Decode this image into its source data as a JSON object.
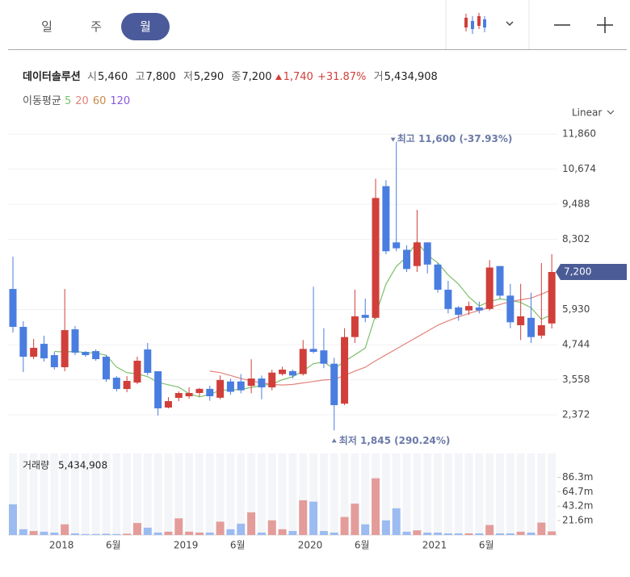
{
  "tabs": [
    "일",
    "주",
    "월"
  ],
  "active_tab": 2,
  "header": {
    "name": "데이터솔루션",
    "quotes": [
      {
        "label": "시",
        "value": "5,460"
      },
      {
        "label": "고",
        "value": "7,800"
      },
      {
        "label": "저",
        "value": "5,290"
      },
      {
        "label": "종",
        "value": "7,200"
      }
    ],
    "change": "1,740",
    "change_pct": "+31.87%",
    "volume_label": "거",
    "volume": "5,434,908"
  },
  "ma_title": "이동평균",
  "chart_data": {
    "type": "candlestick",
    "scale_label": "Linear",
    "categories": [
      null,
      null,
      null,
      null,
      null,
      "2018",
      null,
      null,
      null,
      null,
      "6월",
      null,
      null,
      null,
      null,
      null,
      null,
      "2019",
      null,
      null,
      null,
      null,
      "6월",
      null,
      null,
      null,
      null,
      null,
      null,
      "2020",
      null,
      null,
      null,
      null,
      "6월",
      null,
      null,
      null,
      null,
      null,
      null,
      "2021",
      null,
      null,
      null,
      null,
      "6월",
      null,
      null,
      null,
      null,
      null,
      null
    ],
    "open": [
      6626,
      5345,
      4336,
      4772,
      4390,
      3981,
      5262,
      4499,
      4526,
      4336,
      3627,
      3245,
      3463,
      4581,
      3845,
      2618,
      2945,
      3000,
      3110,
      3250,
      2950,
      3500,
      3500,
      3350,
      3600,
      3300,
      3750,
      3850,
      3750,
      4600,
      4550,
      4100,
      2750,
      5000,
      5750,
      5650,
      10100,
      8200,
      7950,
      7400,
      8200,
      7450,
      6600,
      6000,
      5900,
      6000,
      5950,
      7400,
      6400,
      5400,
      5650,
      5050,
      5460
    ],
    "high": [
      7716,
      5535,
      4935,
      5044,
      4499,
      6626,
      5371,
      4526,
      4580,
      4390,
      3681,
      3681,
      4336,
      4799,
      3845,
      2970,
      3163,
      3300,
      3280,
      3360,
      3700,
      3600,
      3750,
      4250,
      3700,
      3900,
      4000,
      3900,
      4900,
      6700,
      5300,
      4300,
      5300,
      6600,
      6300,
      10350,
      10300,
      11600,
      8100,
      9300,
      8200,
      7500,
      6900,
      6050,
      6200,
      6200,
      7600,
      7400,
      6800,
      6800,
      6500,
      7500,
      7800
    ],
    "low": [
      5153,
      3818,
      4254,
      4172,
      3900,
      3845,
      4390,
      4336,
      4200,
      3490,
      3163,
      3136,
      3409,
      3708,
      2346,
      2591,
      2836,
      2920,
      2990,
      2850,
      2900,
      3050,
      3100,
      3100,
      2900,
      3200,
      3700,
      3600,
      3700,
      4450,
      3950,
      1845,
      2700,
      4800,
      5500,
      5600,
      7800,
      7900,
      7200,
      7200,
      7150,
      6500,
      5800,
      5550,
      5750,
      5800,
      5900,
      6300,
      5300,
      4900,
      4800,
      4950,
      5290
    ],
    "close": [
      5345,
      4336,
      4636,
      4282,
      3981,
      5235,
      4472,
      4390,
      4254,
      3572,
      3245,
      3518,
      4200,
      3790,
      2591,
      2836,
      3109,
      3110,
      3250,
      3000,
      3550,
      3150,
      3200,
      3600,
      3300,
      3800,
      3900,
      3700,
      4600,
      4500,
      4100,
      2700,
      5000,
      5700,
      5650,
      9700,
      7900,
      8000,
      7300,
      8200,
      7450,
      6600,
      5950,
      5750,
      6050,
      5900,
      7350,
      6400,
      5500,
      5700,
      5000,
      5400,
      7200
    ],
    "up_color": "#d13f3a",
    "down_color": "#4a7de0",
    "ylim": [
      1400,
      12300
    ],
    "yticks": [
      {
        "value": 2372,
        "label": "2,372"
      },
      {
        "value": 3558,
        "label": "3,558"
      },
      {
        "value": 4744,
        "label": "4,744"
      },
      {
        "value": 5930,
        "label": "5,930"
      },
      {
        "value": 8302,
        "label": "8,302"
      },
      {
        "value": 9488,
        "label": "9,488"
      },
      {
        "value": 10674,
        "label": "10,674"
      },
      {
        "value": 11860,
        "label": "11,860"
      }
    ],
    "grid": true,
    "series": [
      {
        "name": "5",
        "color": "#7cc06a",
        "values": [
          null,
          null,
          null,
          null,
          4516,
          4494,
          4521,
          4472,
          4466,
          4385,
          3987,
          3796,
          3758,
          3665,
          3469,
          3387,
          3305,
          3087,
          2979,
          3061,
          3204,
          3212,
          3230,
          3300,
          3360,
          3410,
          3560,
          3660,
          3860,
          4100,
          4160,
          3920,
          4180,
          4400,
          4630,
          5750,
          6790,
          7390,
          7710,
          8220,
          7770,
          7510,
          7100,
          6790,
          6360,
          6050,
          6200,
          6290,
          6240,
          6170,
          5990,
          5600,
          5760
        ]
      },
      {
        "name": "20",
        "color": "#e3837a",
        "values": [
          null,
          null,
          null,
          null,
          null,
          null,
          null,
          null,
          null,
          null,
          null,
          null,
          null,
          null,
          null,
          null,
          null,
          null,
          null,
          3850,
          3800,
          3700,
          3600,
          3520,
          3450,
          3400,
          3380,
          3400,
          3450,
          3500,
          3550,
          3570,
          3700,
          3850,
          3980,
          4200,
          4400,
          4600,
          4800,
          5000,
          5200,
          5400,
          5550,
          5680,
          5800,
          5900,
          6000,
          6100,
          6200,
          6260,
          6320,
          6450,
          6600
        ]
      },
      {
        "name": "60",
        "color": "#c98a4a",
        "values": [
          null,
          null,
          null,
          null,
          null,
          null,
          null,
          null,
          null,
          null,
          null,
          null,
          null,
          null,
          null,
          null,
          null,
          null,
          null,
          null,
          null,
          null,
          null,
          null,
          null,
          null,
          null,
          null,
          null,
          null,
          null,
          null,
          null,
          null,
          null,
          null,
          null,
          null,
          null,
          null,
          null,
          null,
          null,
          null,
          null,
          null,
          null,
          null,
          null,
          null,
          null,
          null,
          null
        ]
      },
      {
        "name": "120",
        "color": "#8a5ad8",
        "values": [
          null,
          null,
          null,
          null,
          null,
          null,
          null,
          null,
          null,
          null,
          null,
          null,
          null,
          null,
          null,
          null,
          null,
          null,
          null,
          null,
          null,
          null,
          null,
          null,
          null,
          null,
          null,
          null,
          null,
          null,
          null,
          null,
          null,
          null,
          null,
          null,
          null,
          null,
          null,
          null,
          null,
          null,
          null,
          null,
          null,
          null,
          null,
          null,
          null,
          null,
          null,
          null,
          null
        ]
      }
    ],
    "annotations": [
      {
        "text": "최고 11,600 (-37.93%)"
      },
      {
        "text": "최저 1,845 (290.24%)"
      }
    ],
    "volume": {
      "title": "거래량",
      "up_color": "#e39c9a",
      "down_color": "#9cbbf0",
      "values": [
        46000000,
        8700000,
        6000000,
        5000000,
        3700000,
        16000000,
        2500000,
        1500000,
        1500000,
        2000000,
        1500000,
        2000000,
        18000000,
        11000000,
        3700000,
        5000000,
        25000000,
        5000000,
        3700000,
        3700000,
        20000000,
        8700000,
        17000000,
        34000000,
        3700000,
        22000000,
        8700000,
        6000000,
        52000000,
        50000000,
        6000000,
        3700000,
        27000000,
        47000000,
        16000000,
        85000000,
        22000000,
        40000000,
        5000000,
        7000000,
        3700000,
        3700000,
        2500000,
        2500000,
        2500000,
        2500000,
        15000000,
        2500000,
        2500000,
        5000000,
        3700000,
        18700000,
        5434908
      ],
      "ylim": [
        0,
        122000000
      ],
      "yticks": [
        {
          "value": 21600000,
          "label": "21.6m"
        },
        {
          "value": 43200000,
          "label": "43.2m"
        },
        {
          "value": 64700000,
          "label": "64.7m"
        },
        {
          "value": 86300000,
          "label": "86.3m"
        }
      ]
    }
  }
}
